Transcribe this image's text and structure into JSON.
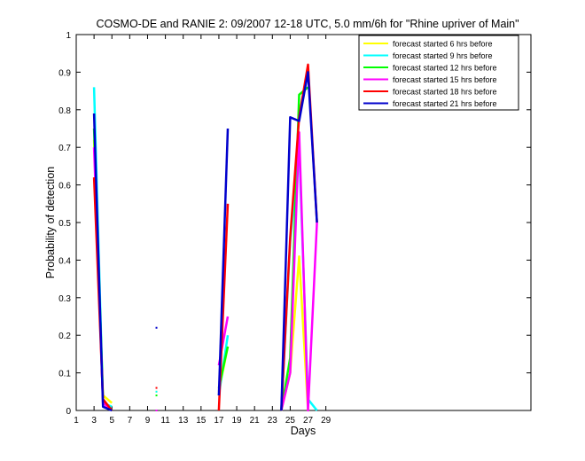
{
  "chart_data": {
    "type": "line",
    "title": "COSMO-DE and RANIE 2: 09/2007 12-18 UTC, 5.0 mm/6h for \"Rhine upriver of Main\"",
    "xlabel": "Days",
    "ylabel": "Probability of detection",
    "xlim": [
      1,
      52
    ],
    "ylim": [
      0,
      1
    ],
    "xticks": [
      1,
      3,
      5,
      7,
      9,
      11,
      13,
      15,
      17,
      19,
      21,
      23,
      25,
      27,
      29
    ],
    "yticks": [
      0,
      0.1,
      0.2,
      0.3,
      0.4,
      0.5,
      0.6,
      0.7,
      0.8,
      0.9,
      1
    ],
    "ytick_labels": [
      "0",
      "0.1",
      "0.2",
      "0.3",
      "0.4",
      "0.5",
      "0.6",
      "0.7",
      "0.8",
      "0.9",
      "1"
    ],
    "grid": false,
    "legend_position": "top-right",
    "series": [
      {
        "name": "forecast started 6 hrs before",
        "color": "#ffff00",
        "segments": [
          [
            [
              3,
              0.72
            ],
            [
              4,
              0.04
            ],
            [
              5,
              0.02
            ]
          ],
          [
            [
              17,
              0.05
            ],
            [
              18,
              0.17
            ]
          ],
          [
            [
              24,
              0.0
            ],
            [
              25,
              0.1
            ],
            [
              26,
              0.41
            ],
            [
              27,
              0.0
            ]
          ]
        ],
        "points": [
          [
            10,
            0.05
          ]
        ]
      },
      {
        "name": "forecast started 9 hrs before",
        "color": "#00ffff",
        "segments": [
          [
            [
              3,
              0.86
            ],
            [
              4,
              0.02
            ],
            [
              5,
              0.01
            ]
          ],
          [
            [
              17,
              0.04
            ],
            [
              18,
              0.2
            ]
          ],
          [
            [
              24,
              0.0
            ],
            [
              25,
              0.45
            ],
            [
              26,
              0.7
            ],
            [
              27,
              0.03
            ],
            [
              28,
              0.0
            ]
          ]
        ],
        "points": [
          [
            10,
            0.05
          ]
        ]
      },
      {
        "name": "forecast started 12 hrs before",
        "color": "#00ff00",
        "segments": [
          [
            [
              3,
              0.75
            ],
            [
              4,
              0.03
            ],
            [
              5,
              0.0
            ]
          ],
          [
            [
              17,
              0.06
            ],
            [
              18,
              0.17
            ]
          ],
          [
            [
              24,
              0.0
            ],
            [
              25,
              0.14
            ],
            [
              26,
              0.84
            ],
            [
              27,
              0.86
            ]
          ]
        ],
        "points": [
          [
            10,
            0.04
          ]
        ]
      },
      {
        "name": "forecast started 15 hrs before",
        "color": "#ff00ff",
        "segments": [
          [
            [
              3,
              0.7
            ],
            [
              4,
              0.02
            ],
            [
              5,
              0.0
            ]
          ],
          [
            [
              17,
              0.12
            ],
            [
              18,
              0.25
            ]
          ],
          [
            [
              24,
              0.0
            ],
            [
              25,
              0.1
            ],
            [
              26,
              0.74
            ],
            [
              27,
              0.0
            ],
            [
              28,
              0.5
            ]
          ]
        ],
        "points": [
          [
            10,
            0.0
          ]
        ]
      },
      {
        "name": "forecast started 18 hrs before",
        "color": "#ff0000",
        "segments": [
          [
            [
              3,
              0.62
            ],
            [
              4,
              0.03
            ],
            [
              5,
              0.0
            ]
          ],
          [
            [
              17,
              0.0
            ],
            [
              18,
              0.55
            ]
          ],
          [
            [
              24,
              0.0
            ],
            [
              25,
              0.46
            ],
            [
              26,
              0.78
            ],
            [
              27,
              0.92
            ],
            [
              28,
              0.5
            ]
          ]
        ],
        "points": [
          [
            10,
            0.06
          ]
        ]
      },
      {
        "name": "forecast started 21 hrs before",
        "color": "#0000cc",
        "segments": [
          [
            [
              3,
              0.79
            ],
            [
              4,
              0.01
            ],
            [
              5,
              0.0
            ]
          ],
          [
            [
              17,
              0.04
            ],
            [
              18,
              0.75
            ]
          ],
          [
            [
              24,
              0.0
            ],
            [
              25,
              0.78
            ],
            [
              26,
              0.77
            ],
            [
              27,
              0.9
            ],
            [
              28,
              0.5
            ]
          ]
        ],
        "points": [
          [
            10,
            0.22
          ]
        ]
      }
    ]
  }
}
